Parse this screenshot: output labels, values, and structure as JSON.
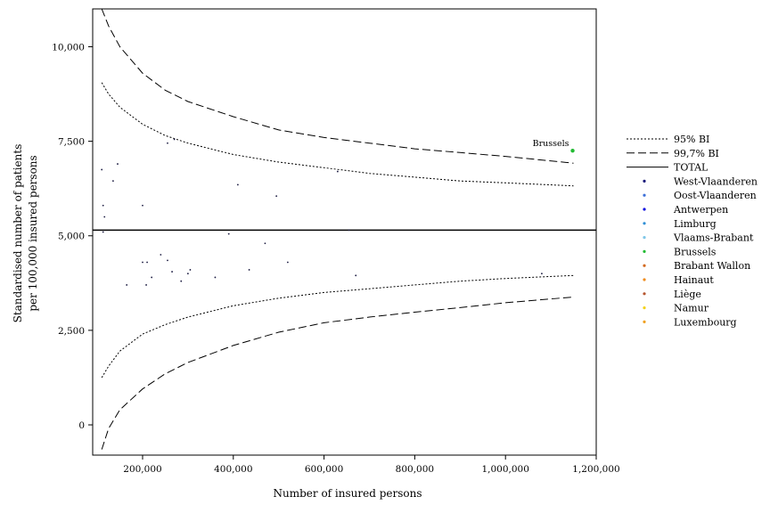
{
  "chart_data": {
    "type": "scatter",
    "title": "",
    "xlabel": "Number of insured persons",
    "ylabel_lines": [
      "Standardised number of patients",
      "per 100,000 insured persons"
    ],
    "xlim": [
      90000,
      1200000
    ],
    "ylim": [
      -800,
      11000
    ],
    "x_ticks": [
      200000,
      400000,
      600000,
      800000,
      1000000,
      1200000
    ],
    "x_tick_labels": [
      "200,000",
      "400,000",
      "600,000",
      "800,000",
      "1,000,000",
      "1,200,000"
    ],
    "y_ticks": [
      0,
      2500,
      5000,
      7500,
      10000
    ],
    "y_tick_labels": [
      "0",
      "2,500",
      "5,000",
      "7,500",
      "10,000"
    ],
    "grid": false,
    "legend_position": "right",
    "total_value": 5150,
    "lines": [
      {
        "name": "95% BI",
        "style": "dotted",
        "band": "upper",
        "x": [
          110000,
          125000,
          150000,
          200000,
          250000,
          300000,
          400000,
          500000,
          600000,
          700000,
          800000,
          900000,
          1000000,
          1150000
        ],
        "y": [
          9050,
          8750,
          8400,
          7950,
          7650,
          7450,
          7150,
          6950,
          6800,
          6650,
          6550,
          6450,
          6400,
          6320
        ]
      },
      {
        "name": "95% BI",
        "style": "dotted",
        "band": "lower",
        "x": [
          110000,
          125000,
          150000,
          200000,
          250000,
          300000,
          400000,
          500000,
          600000,
          700000,
          800000,
          900000,
          1000000,
          1150000
        ],
        "y": [
          1250,
          1550,
          1950,
          2400,
          2650,
          2850,
          3150,
          3350,
          3500,
          3600,
          3700,
          3800,
          3870,
          3950
        ]
      },
      {
        "name": "99,7% BI",
        "style": "dashed",
        "band": "upper",
        "x": [
          110000,
          125000,
          150000,
          200000,
          250000,
          300000,
          400000,
          500000,
          600000,
          700000,
          800000,
          900000,
          1000000,
          1150000
        ],
        "y": [
          11000,
          10550,
          10000,
          9300,
          8850,
          8550,
          8150,
          7800,
          7600,
          7450,
          7300,
          7200,
          7100,
          6920
        ]
      },
      {
        "name": "99,7% BI",
        "style": "dashed",
        "band": "lower",
        "x": [
          110000,
          125000,
          150000,
          200000,
          250000,
          300000,
          400000,
          500000,
          600000,
          700000,
          800000,
          900000,
          1000000,
          1150000
        ],
        "y": [
          -650,
          -100,
          400,
          950,
          1350,
          1650,
          2100,
          2450,
          2700,
          2850,
          2980,
          3100,
          3230,
          3380
        ]
      }
    ],
    "points": [
      {
        "x": 110000,
        "y": 6750
      },
      {
        "x": 113000,
        "y": 5800
      },
      {
        "x": 116000,
        "y": 5500
      },
      {
        "x": 113000,
        "y": 5100
      },
      {
        "x": 135000,
        "y": 6450
      },
      {
        "x": 145000,
        "y": 6900
      },
      {
        "x": 200000,
        "y": 5800
      },
      {
        "x": 255000,
        "y": 7450
      },
      {
        "x": 270000,
        "y": 7550
      },
      {
        "x": 410000,
        "y": 6350
      },
      {
        "x": 495000,
        "y": 6050
      },
      {
        "x": 630000,
        "y": 6700
      },
      {
        "x": 655000,
        "y": 5150
      },
      {
        "x": 390000,
        "y": 5050
      },
      {
        "x": 470000,
        "y": 4800
      },
      {
        "x": 200000,
        "y": 4300
      },
      {
        "x": 210000,
        "y": 4300
      },
      {
        "x": 240000,
        "y": 4500
      },
      {
        "x": 255000,
        "y": 4350
      },
      {
        "x": 165000,
        "y": 3700
      },
      {
        "x": 208000,
        "y": 3700
      },
      {
        "x": 220000,
        "y": 3900
      },
      {
        "x": 265000,
        "y": 4050
      },
      {
        "x": 285000,
        "y": 3800
      },
      {
        "x": 300000,
        "y": 4000
      },
      {
        "x": 305000,
        "y": 4100
      },
      {
        "x": 360000,
        "y": 3900
      },
      {
        "x": 435000,
        "y": 4100
      },
      {
        "x": 520000,
        "y": 4300
      },
      {
        "x": 670000,
        "y": 3950
      },
      {
        "x": 1080000,
        "y": 4000
      }
    ],
    "highlight_point": {
      "label": "Brussels",
      "x": 1148000,
      "y": 7250,
      "color": "#22bb33"
    },
    "legend": [
      {
        "label": "95% BI",
        "kind": "dotted-line"
      },
      {
        "label": "99,7% BI",
        "kind": "dashed-line"
      },
      {
        "label": "TOTAL",
        "kind": "solid-line"
      },
      {
        "label": "West-Vlaanderen",
        "kind": "dot",
        "color": "#1a1a7a"
      },
      {
        "label": "Oost-Vlaanderen",
        "kind": "dot",
        "color": "#3c6fd8"
      },
      {
        "label": "Antwerpen",
        "kind": "dot",
        "color": "#1010e0"
      },
      {
        "label": "Limburg",
        "kind": "dot",
        "color": "#2f8fd6"
      },
      {
        "label": "Vlaams-Brabant",
        "kind": "dot",
        "color": "#7fc7e8"
      },
      {
        "label": "Brussels",
        "kind": "dot",
        "color": "#22bb33"
      },
      {
        "label": "Brabant Wallon",
        "kind": "dot",
        "color": "#d2691e"
      },
      {
        "label": "Hainaut",
        "kind": "dot",
        "color": "#f08c1e"
      },
      {
        "label": "Liège",
        "kind": "dot",
        "color": "#b5552e"
      },
      {
        "label": "Namur",
        "kind": "dot",
        "color": "#f4d21a"
      },
      {
        "label": "Luxembourg",
        "kind": "dot",
        "color": "#f0a020"
      }
    ]
  }
}
